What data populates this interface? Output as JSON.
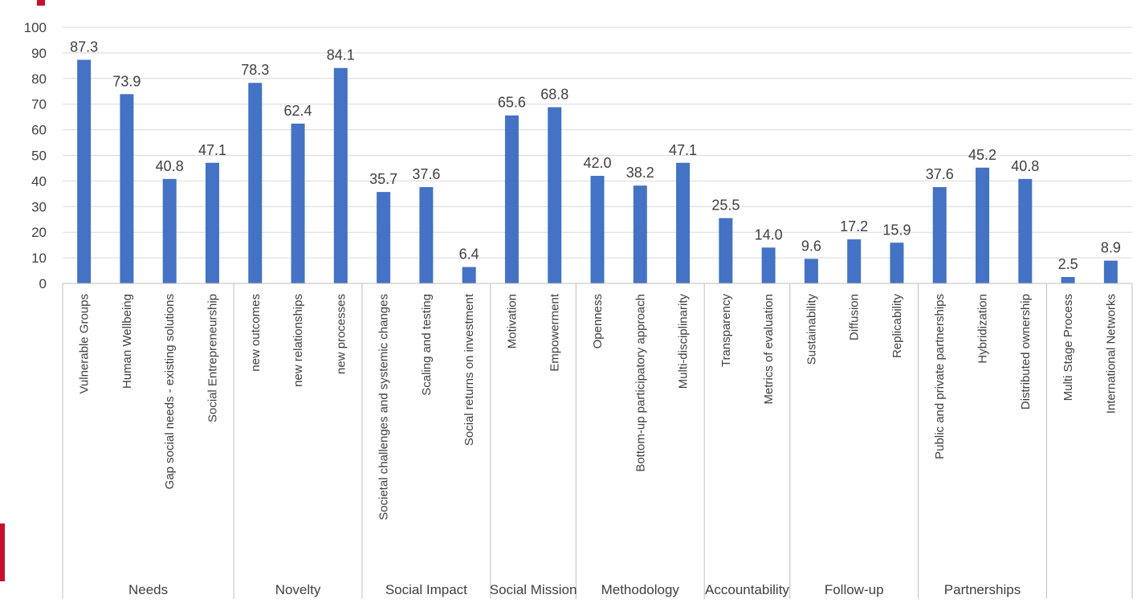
{
  "chart_data": {
    "type": "bar",
    "ylim": [
      0,
      100
    ],
    "yticks": [
      0,
      10,
      20,
      30,
      40,
      50,
      60,
      70,
      80,
      90,
      100
    ],
    "grid": true,
    "categories": [
      "Vulnerable Groups",
      "Human Wellbeing",
      "Gap social needs - existing solutions",
      "Social Entrepreneurship",
      "new outcomes",
      "new relationships",
      "new processes",
      "Societal challenges and systemic changes",
      "Scaling and testing",
      "Social returns on investment",
      "Motivation",
      "Empowerment",
      "Openness",
      "Bottom-up participatory approach",
      "Multi-disciplinarity",
      "Transparency",
      "Metrics of evaluation",
      "Sustainability",
      "Diffusion",
      "Replicability",
      "Public and private partnerships",
      "Hybridization",
      "Distributed ownership",
      "Multi Stage Process",
      "International Networks"
    ],
    "values": [
      87.3,
      73.9,
      40.8,
      47.1,
      78.3,
      62.4,
      84.1,
      35.7,
      37.6,
      6.4,
      65.6,
      68.8,
      42.0,
      38.2,
      47.1,
      25.5,
      14.0,
      9.6,
      17.2,
      15.9,
      37.6,
      45.2,
      40.8,
      2.5,
      8.9
    ],
    "value_labels": [
      "87.3",
      "73.9",
      "40.8",
      "47.1",
      "78.3",
      "62.4",
      "84.1",
      "35.7",
      "37.6",
      "6.4",
      "65.6",
      "68.8",
      "42.0",
      "38.2",
      "47.1",
      "25.5",
      "14.0",
      "9.6",
      "17.2",
      "15.9",
      "37.6",
      "45.2",
      "40.8",
      "2.5",
      "8.9"
    ],
    "groups": [
      {
        "name": "Needs",
        "count": 4
      },
      {
        "name": "Novelty",
        "count": 3
      },
      {
        "name": "Social Impact",
        "count": 3
      },
      {
        "name": "Social Mission",
        "count": 2
      },
      {
        "name": "Methodology",
        "count": 3
      },
      {
        "name": "Accountability",
        "count": 2
      },
      {
        "name": "Follow-up",
        "count": 3
      },
      {
        "name": "Partnerships",
        "count": 3
      },
      {
        "name": "",
        "count": 2
      }
    ],
    "colors": {
      "bar": "#4472c4",
      "grid": "#d9d9d9",
      "axis": "#bfbfbf",
      "text": "#404040",
      "accent": "#c8102e"
    }
  }
}
